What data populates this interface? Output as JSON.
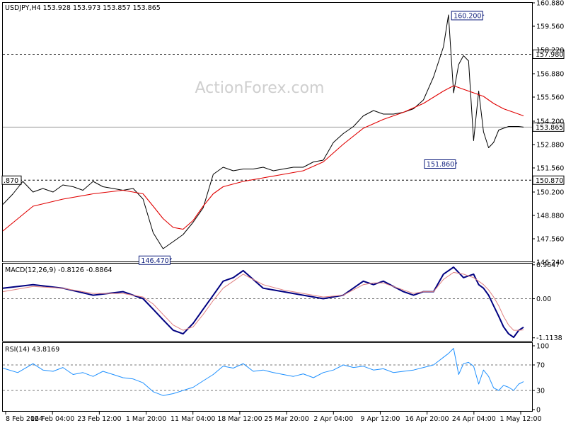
{
  "header": {
    "main": "USDJPY,H4  153.928 153.973 153.857 153.865",
    "macd": "MACD(12,26,9) -0.8126 -0.8864",
    "rsi": "RSI(14) 43.8169",
    "watermark": "ActionForex.com"
  },
  "colors": {
    "price": "#000000",
    "ma": "#e00000",
    "macd_main": "#000080",
    "macd_signal": "#e08080",
    "rsi": "#1e90ff",
    "grid": "#999999",
    "label_blue": "#0a1a7a"
  },
  "chart_data": [
    {
      "type": "line",
      "panel": "price",
      "yticks": [
        "160.880",
        "159.560",
        "158.220",
        "156.880",
        "155.560",
        "154.200",
        "152.880",
        "151.560",
        "150.200",
        "148.880",
        "147.560",
        "146.240"
      ],
      "ylim": [
        146.24,
        160.88
      ],
      "x_labels": [
        "8 Feb 2024",
        "16 Feb 04:00",
        "23 Feb 12:00",
        "1 Mar 20:00",
        "11 Mar 04:00",
        "18 Mar 12:00",
        "25 Mar 20:00",
        "2 Apr 04:00",
        "9 Apr 12:00",
        "16 Apr 20:00",
        "24 Apr 04:00",
        "1 May 12:00"
      ],
      "levels": [
        {
          "value": 157.98,
          "label": "157.980"
        },
        {
          "value": 153.865,
          "label": "153.865"
        },
        {
          "value": 150.87,
          "label": "150.870",
          "left_label": ".870"
        }
      ],
      "annotations": [
        {
          "x": 170.6,
          "y": 160.2,
          "label": "160.200"
        },
        {
          "x": 161.0,
          "y": 151.86,
          "label": "151.860"
        },
        {
          "x": 59.8,
          "y": 146.47,
          "label": "146.470"
        }
      ],
      "series": [
        {
          "role": "price",
          "x": [
            0,
            3.6,
            7.1,
            10.7,
            14.2,
            17.8,
            21.3,
            24.9,
            28.4,
            32.0,
            35.5,
            39.1,
            42.6,
            46.2,
            49.7,
            53.3,
            56.8,
            60.4,
            63.9,
            67.5,
            71.0,
            74.6,
            78.1,
            81.7,
            85.2,
            88.8,
            92.3,
            95.9,
            99.4,
            103.0,
            106.5,
            110.1,
            113.6,
            117.2,
            120.7,
            124.3,
            127.8,
            131.4,
            134.9,
            138.5,
            142.0,
            145.6,
            149.1,
            152.7,
            156.2,
            158.0,
            159.8,
            161.6,
            163.3,
            165.1,
            166.9,
            168.7,
            170.4,
            172.2,
            174.0,
            175.8,
            177.5,
            179.3,
            181.1,
            182.9,
            184.6
          ],
          "values": [
            149.5,
            150.1,
            150.8,
            150.2,
            150.4,
            150.2,
            150.6,
            150.5,
            150.3,
            150.8,
            150.5,
            150.4,
            150.3,
            150.4,
            149.8,
            147.9,
            147.0,
            147.4,
            147.8,
            148.5,
            149.3,
            151.2,
            151.6,
            151.4,
            151.5,
            151.5,
            151.6,
            151.4,
            151.5,
            151.6,
            151.6,
            151.9,
            152.0,
            153.0,
            153.5,
            153.9,
            154.5,
            154.8,
            154.6,
            154.6,
            154.7,
            154.9,
            155.4,
            156.7,
            158.4,
            160.2,
            155.8,
            157.4,
            157.9,
            157.6,
            153.1,
            155.9,
            153.6,
            152.7,
            153.0,
            153.7,
            153.8,
            153.9,
            153.9,
            153.9,
            153.865
          ]
        },
        {
          "role": "moving_average",
          "x": [
            0,
            10.7,
            21.3,
            32.0,
            42.6,
            49.7,
            53.3,
            56.8,
            60.4,
            63.9,
            67.5,
            71.0,
            74.6,
            78.1,
            85.2,
            92.3,
            99.4,
            106.5,
            113.6,
            120.7,
            127.8,
            134.9,
            142.0,
            149.1,
            156.2,
            159.8,
            163.3,
            166.9,
            170.4,
            174.0,
            177.5,
            181.1,
            184.6
          ],
          "values": [
            148.0,
            149.4,
            149.8,
            150.1,
            150.3,
            150.1,
            149.4,
            148.7,
            148.2,
            148.1,
            148.6,
            149.4,
            150.1,
            150.5,
            150.8,
            151.0,
            151.2,
            151.4,
            151.9,
            152.9,
            153.8,
            154.3,
            154.7,
            155.2,
            155.9,
            156.2,
            156.0,
            155.8,
            155.6,
            155.2,
            154.9,
            154.7,
            154.5
          ]
        }
      ]
    },
    {
      "type": "line",
      "panel": "macd",
      "title": "MACD(12,26,9) -0.8126 -0.8864",
      "yticks": [
        "0.9647",
        "0.00",
        "-1.1138"
      ],
      "ylim": [
        -1.2,
        1.0
      ],
      "series": [
        {
          "role": "macd",
          "x": [
            0,
            10.7,
            21.3,
            32.0,
            42.6,
            49.7,
            53.3,
            56.8,
            60.4,
            63.9,
            67.5,
            71.0,
            74.6,
            78.1,
            81.7,
            85.2,
            92.3,
            99.4,
            106.5,
            113.6,
            120.7,
            127.8,
            131.4,
            134.9,
            142.0,
            145.6,
            149.1,
            152.7,
            156.2,
            159.8,
            163.3,
            166.9,
            168.7,
            170.4,
            172.2,
            174.0,
            175.8,
            177.5,
            179.3,
            181.1,
            182.9,
            184.6
          ],
          "values": [
            0.3,
            0.4,
            0.3,
            0.1,
            0.2,
            0.0,
            -0.3,
            -0.6,
            -0.9,
            -1.0,
            -0.7,
            -0.3,
            0.1,
            0.5,
            0.6,
            0.8,
            0.3,
            0.2,
            0.1,
            0.0,
            0.1,
            0.5,
            0.4,
            0.5,
            0.2,
            0.1,
            0.2,
            0.2,
            0.7,
            0.9,
            0.6,
            0.7,
            0.4,
            0.3,
            0.1,
            -0.2,
            -0.5,
            -0.8,
            -1.0,
            -1.1,
            -0.9,
            -0.8126
          ]
        },
        {
          "role": "signal",
          "x": [
            0,
            10.7,
            21.3,
            32.0,
            42.6,
            49.7,
            53.3,
            56.8,
            60.4,
            63.9,
            67.5,
            71.0,
            74.6,
            78.1,
            81.7,
            85.2,
            92.3,
            99.4,
            106.5,
            113.6,
            120.7,
            127.8,
            131.4,
            134.9,
            142.0,
            145.6,
            149.1,
            152.7,
            156.2,
            159.8,
            163.3,
            166.9,
            168.7,
            170.4,
            172.2,
            174.0,
            175.8,
            177.5,
            179.3,
            181.1,
            182.9,
            184.6
          ],
          "values": [
            0.2,
            0.35,
            0.3,
            0.15,
            0.15,
            0.05,
            -0.15,
            -0.45,
            -0.75,
            -0.9,
            -0.8,
            -0.45,
            -0.05,
            0.3,
            0.5,
            0.7,
            0.4,
            0.25,
            0.15,
            0.05,
            0.1,
            0.4,
            0.45,
            0.45,
            0.25,
            0.15,
            0.2,
            0.2,
            0.55,
            0.75,
            0.7,
            0.6,
            0.5,
            0.4,
            0.25,
            0.05,
            -0.2,
            -0.5,
            -0.75,
            -0.9,
            -0.9,
            -0.8864
          ]
        }
      ]
    },
    {
      "type": "line",
      "panel": "rsi",
      "title": "RSI(14) 43.8169",
      "yticks": [
        "100",
        "70",
        "30",
        "0"
      ],
      "ylim": [
        0,
        100
      ],
      "series": [
        {
          "role": "rsi",
          "x": [
            0,
            5.3,
            10.7,
            14.2,
            17.8,
            21.3,
            24.9,
            28.4,
            32.0,
            35.5,
            39.1,
            42.6,
            46.2,
            49.7,
            53.3,
            56.8,
            60.4,
            63.9,
            67.5,
            71.0,
            74.6,
            78.1,
            81.7,
            85.2,
            88.8,
            92.3,
            95.9,
            99.4,
            103.0,
            106.5,
            110.1,
            113.6,
            117.2,
            120.7,
            124.3,
            127.8,
            131.4,
            134.9,
            138.5,
            142.0,
            145.6,
            149.1,
            152.7,
            156.2,
            158.0,
            159.8,
            161.6,
            163.3,
            165.1,
            166.9,
            168.7,
            170.4,
            172.2,
            174.0,
            175.8,
            177.5,
            179.3,
            181.1,
            182.9,
            184.6
          ],
          "values": [
            65,
            58,
            72,
            62,
            60,
            66,
            55,
            58,
            52,
            60,
            55,
            50,
            48,
            42,
            28,
            22,
            25,
            30,
            35,
            45,
            55,
            68,
            65,
            72,
            60,
            62,
            58,
            55,
            52,
            56,
            50,
            58,
            62,
            70,
            66,
            68,
            62,
            64,
            58,
            60,
            62,
            66,
            70,
            82,
            88,
            96,
            55,
            72,
            74,
            68,
            40,
            62,
            52,
            34,
            30,
            38,
            35,
            30,
            40,
            43.8169
          ]
        }
      ]
    }
  ]
}
